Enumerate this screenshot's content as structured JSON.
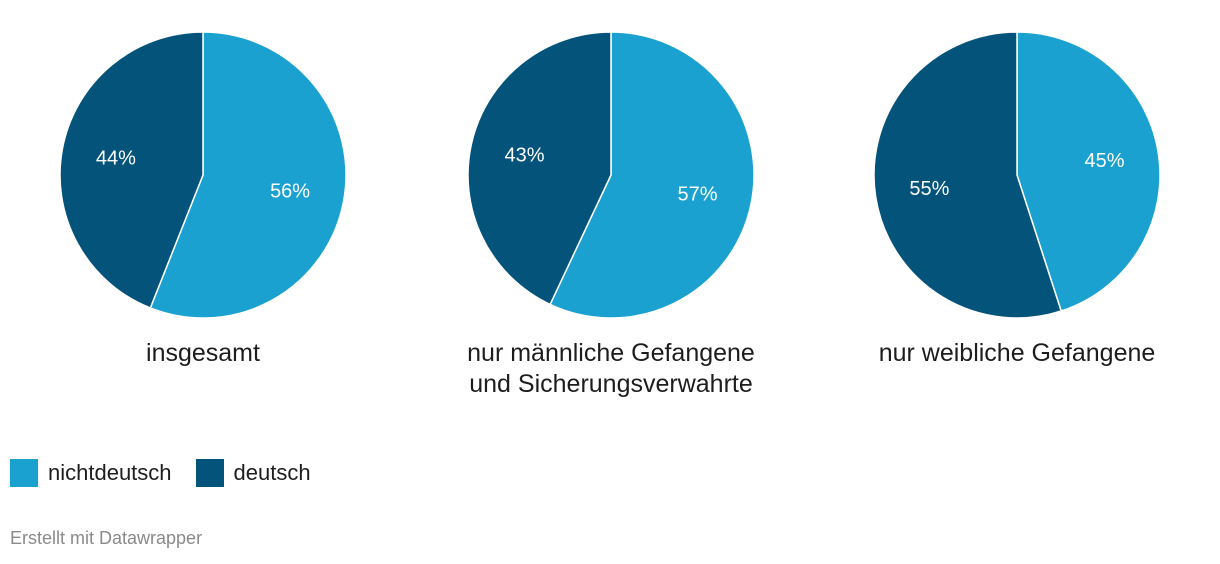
{
  "chart_data": [
    {
      "type": "pie",
      "title": "insgesamt",
      "slices": [
        {
          "label": "nichtdeutsch",
          "value": 56,
          "display": "56%"
        },
        {
          "label": "deutsch",
          "value": 44,
          "display": "44%"
        }
      ]
    },
    {
      "type": "pie",
      "title": "nur männliche Gefangene und Sicherungsverwahrte",
      "title_lines": [
        "nur männliche Gefangene",
        "und Sicherungsverwahrte"
      ],
      "slices": [
        {
          "label": "nichtdeutsch",
          "value": 57,
          "display": "57%"
        },
        {
          "label": "deutsch",
          "value": 43,
          "display": "43%"
        }
      ]
    },
    {
      "type": "pie",
      "title": "nur weibliche Gefangene",
      "slices": [
        {
          "label": "nichtdeutsch",
          "value": 45,
          "display": "45%"
        },
        {
          "label": "deutsch",
          "value": 55,
          "display": "55%"
        }
      ]
    }
  ],
  "legend": [
    {
      "label": "nichtdeutsch",
      "color": "#1aa1cf"
    },
    {
      "label": "deutsch",
      "color": "#04537a"
    }
  ],
  "captions": {
    "pie1": "insgesamt",
    "pie2_line1": "nur männliche Gefangene",
    "pie2_line2": "und Sicherungsverwahrte",
    "pie3": "nur weibliche Gefangene"
  },
  "credit": "Erstellt mit Datawrapper"
}
